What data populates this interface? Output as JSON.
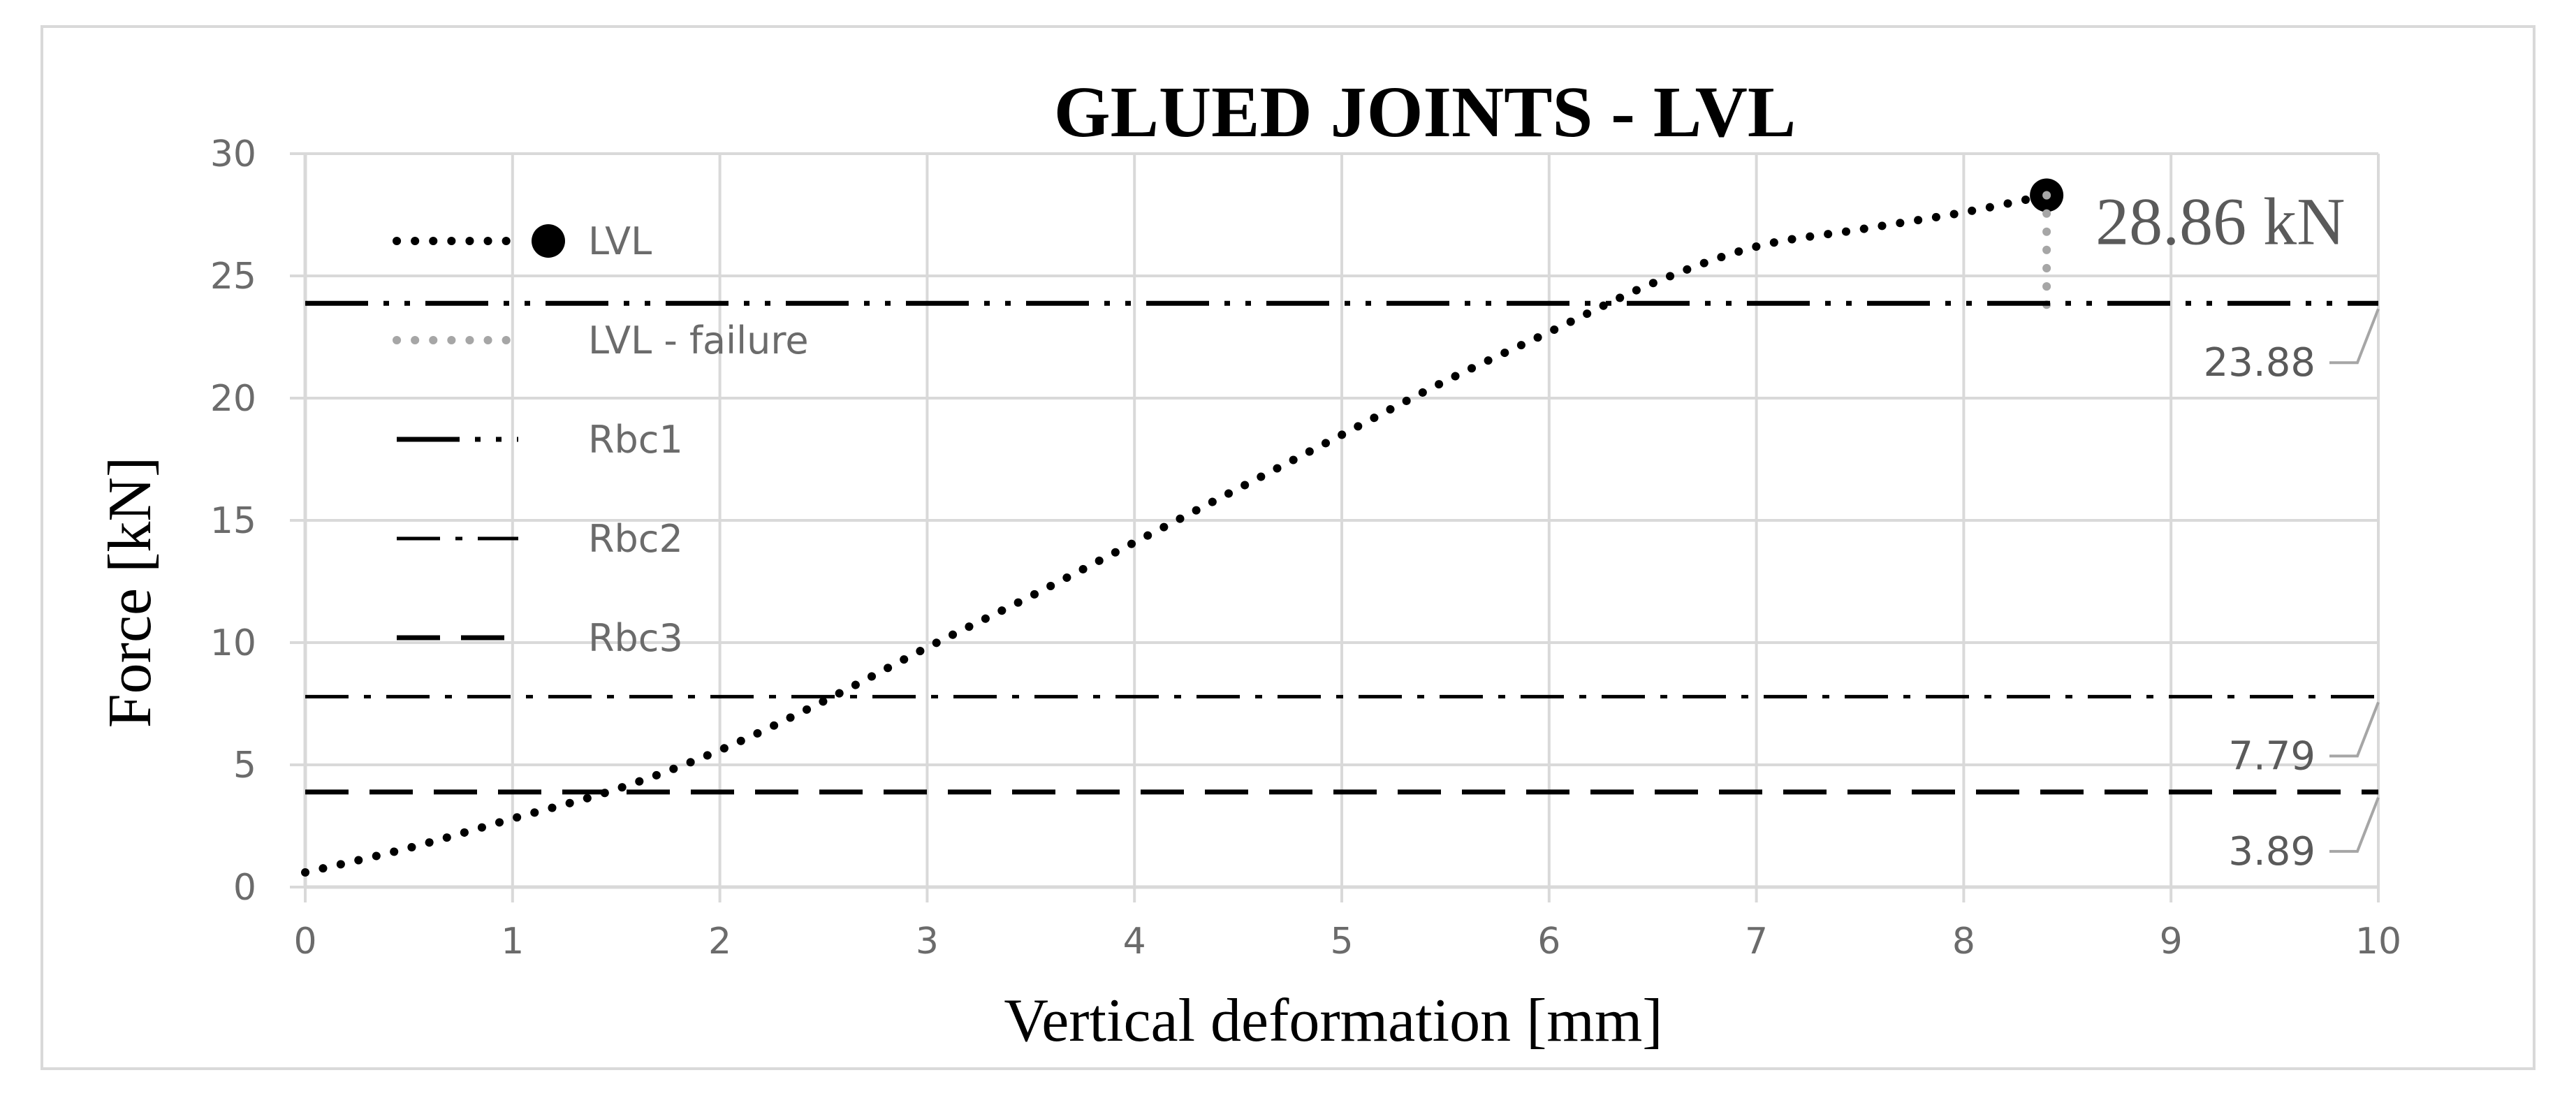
{
  "chart_data": {
    "type": "line",
    "title": "GLUED JOINTS - LVL",
    "xlabel": "Vertical deformation [mm]",
    "ylabel": "Force [kN]",
    "xlim": [
      0,
      10
    ],
    "ylim": [
      0,
      30
    ],
    "xticks": [
      "0",
      "1",
      "2",
      "3",
      "4",
      "5",
      "6",
      "7",
      "8",
      "9",
      "10"
    ],
    "yticks": [
      "0",
      "5",
      "10",
      "15",
      "20",
      "25",
      "30"
    ],
    "grid": true,
    "legend_position": "top-left",
    "series": [
      {
        "name": "LVL",
        "style": "dotted",
        "color": "#000000",
        "marker_end": "circle",
        "x": [
          0,
          0.5,
          1,
          1.5,
          2,
          2.5,
          3,
          3.5,
          4,
          4.5,
          5,
          5.5,
          6,
          6.5,
          7,
          7.5,
          8,
          8.4
        ],
        "y": [
          0.6,
          1.6,
          2.8,
          4.0,
          5.6,
          7.6,
          9.8,
          11.9,
          14.1,
          16.3,
          18.5,
          20.7,
          22.7,
          24.7,
          26.2,
          26.9,
          27.6,
          28.3
        ]
      },
      {
        "name": "LVL - failure",
        "style": "dotted",
        "color": "#a6a6a6",
        "x": [
          8.4,
          8.4
        ],
        "y": [
          28.3,
          23.3
        ]
      },
      {
        "name": "Rbc1",
        "style": "dash-dot-dot",
        "color": "#000000",
        "x": [
          0,
          10
        ],
        "y": [
          23.88,
          23.88
        ],
        "value_label": "23.88"
      },
      {
        "name": "Rbc2",
        "style": "dash-dot",
        "color": "#000000",
        "x": [
          0,
          10
        ],
        "y": [
          7.79,
          7.79
        ],
        "value_label": "7.79"
      },
      {
        "name": "Rbc3",
        "style": "dashed",
        "color": "#000000",
        "x": [
          0,
          10
        ],
        "y": [
          3.89,
          3.89
        ],
        "value_label": "3.89"
      }
    ],
    "annotations": [
      {
        "text": "28.86 kN",
        "x": 8.4,
        "y": 28.3
      }
    ],
    "colors": {
      "grid": "#d9d9d9",
      "frame": "#d9d9d9",
      "tick_text": "#6b6b6b",
      "label_leader": "#a6a6a6"
    }
  }
}
